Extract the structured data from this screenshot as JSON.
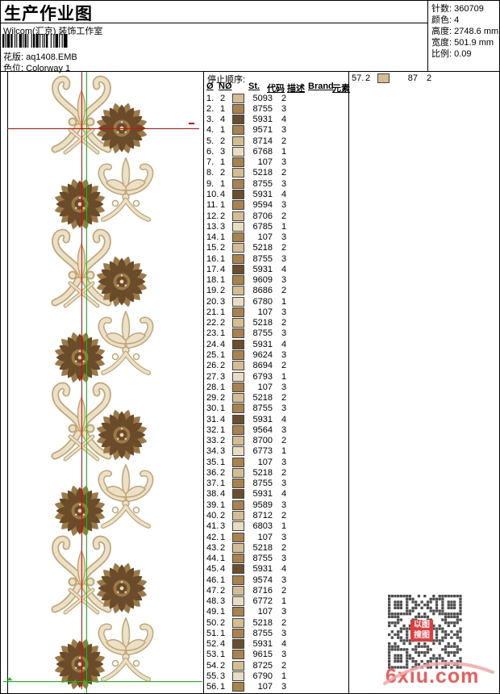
{
  "header": {
    "title": "生产作业图",
    "subtitle": "Wilcom(汇京) 装饰工作室",
    "pattern_label": "花版:",
    "pattern_value": "aq1408.EMB",
    "colorway_label": "色位:",
    "colorway_value": "Colorway 1"
  },
  "info": {
    "rows": [
      {
        "label": "针数:",
        "value": "360709"
      },
      {
        "label": "颜色:",
        "value": "4"
      },
      {
        "label": "高度:",
        "value": "2748.6 mm"
      },
      {
        "label": "宽度:",
        "value": "501.9 mm"
      },
      {
        "label": "比例:",
        "value": "0.09"
      }
    ]
  },
  "stop_sequence": {
    "title": "停止顺序:",
    "headers": [
      "Ø",
      "NØ",
      "St.",
      "代码",
      "描述",
      "Brand",
      "元素"
    ],
    "row_format": [
      "no",
      "needle",
      "stitches",
      "code"
    ],
    "color_codes": {
      "1": "#e9ddc1",
      "2": "#d4bc94",
      "3": "#a8834f",
      "4": "#6a4e2e"
    },
    "rows": [
      [
        "1.",
        "2",
        "5093",
        "2"
      ],
      [
        "2.",
        "1",
        "8755",
        "3"
      ],
      [
        "3.",
        "4",
        "5931",
        "4"
      ],
      [
        "4.",
        "1",
        "9571",
        "3"
      ],
      [
        "5.",
        "2",
        "8714",
        "2"
      ],
      [
        "6.",
        "3",
        "6768",
        "1"
      ],
      [
        "7.",
        "1",
        "107",
        "3"
      ],
      [
        "8.",
        "2",
        "5218",
        "2"
      ],
      [
        "9.",
        "1",
        "8755",
        "3"
      ],
      [
        "10.",
        "4",
        "5931",
        "4"
      ],
      [
        "11.",
        "1",
        "9594",
        "3"
      ],
      [
        "12.",
        "2",
        "8706",
        "2"
      ],
      [
        "13.",
        "3",
        "6785",
        "1"
      ],
      [
        "14.",
        "1",
        "107",
        "3"
      ],
      [
        "15.",
        "2",
        "5218",
        "2"
      ],
      [
        "16.",
        "1",
        "8755",
        "3"
      ],
      [
        "17.",
        "4",
        "5931",
        "4"
      ],
      [
        "18.",
        "1",
        "9609",
        "3"
      ],
      [
        "19.",
        "2",
        "8686",
        "2"
      ],
      [
        "20.",
        "3",
        "6780",
        "1"
      ],
      [
        "21.",
        "1",
        "107",
        "3"
      ],
      [
        "22.",
        "2",
        "5218",
        "2"
      ],
      [
        "23.",
        "1",
        "8755",
        "3"
      ],
      [
        "24.",
        "4",
        "5931",
        "4"
      ],
      [
        "25.",
        "1",
        "9624",
        "3"
      ],
      [
        "26.",
        "2",
        "8694",
        "2"
      ],
      [
        "27.",
        "3",
        "6793",
        "1"
      ],
      [
        "28.",
        "1",
        "107",
        "3"
      ],
      [
        "29.",
        "2",
        "5218",
        "2"
      ],
      [
        "30.",
        "1",
        "8755",
        "3"
      ],
      [
        "31.",
        "4",
        "5931",
        "4"
      ],
      [
        "32.",
        "1",
        "9564",
        "3"
      ],
      [
        "33.",
        "2",
        "8700",
        "2"
      ],
      [
        "34.",
        "3",
        "6773",
        "1"
      ],
      [
        "35.",
        "1",
        "107",
        "3"
      ],
      [
        "36.",
        "2",
        "5218",
        "2"
      ],
      [
        "37.",
        "1",
        "8755",
        "3"
      ],
      [
        "38.",
        "4",
        "5931",
        "4"
      ],
      [
        "39.",
        "1",
        "9589",
        "3"
      ],
      [
        "40.",
        "2",
        "8712",
        "2"
      ],
      [
        "41.",
        "3",
        "6803",
        "1"
      ],
      [
        "42.",
        "1",
        "107",
        "3"
      ],
      [
        "43.",
        "2",
        "5218",
        "2"
      ],
      [
        "44.",
        "1",
        "8755",
        "3"
      ],
      [
        "45.",
        "4",
        "5931",
        "4"
      ],
      [
        "46.",
        "1",
        "9574",
        "3"
      ],
      [
        "47.",
        "2",
        "8716",
        "2"
      ],
      [
        "48.",
        "3",
        "6772",
        "1"
      ],
      [
        "49.",
        "1",
        "107",
        "3"
      ],
      [
        "50.",
        "2",
        "5218",
        "2"
      ],
      [
        "51.",
        "1",
        "8755",
        "3"
      ],
      [
        "52.",
        "4",
        "5931",
        "4"
      ],
      [
        "53.",
        "1",
        "9615",
        "3"
      ],
      [
        "54.",
        "2",
        "8725",
        "2"
      ],
      [
        "55.",
        "3",
        "6790",
        "1"
      ],
      [
        "56.",
        "1",
        "107",
        "3"
      ]
    ],
    "overflow_rows": [
      [
        "57.",
        "2",
        "87",
        "2"
      ]
    ]
  },
  "design": {
    "motif_colors": {
      "flower_dark": "#6b4c2a",
      "flower_mid": "#9c7a48",
      "scroll_cream": "#ece1c6",
      "scroll_shade": "#bfa678"
    },
    "guide_colors": {
      "red": "#ee0000",
      "green": "#00cc00"
    }
  },
  "watermark": {
    "site": "6xiu.com",
    "seal_line1": "以图",
    "seal_line2": "搜图"
  }
}
